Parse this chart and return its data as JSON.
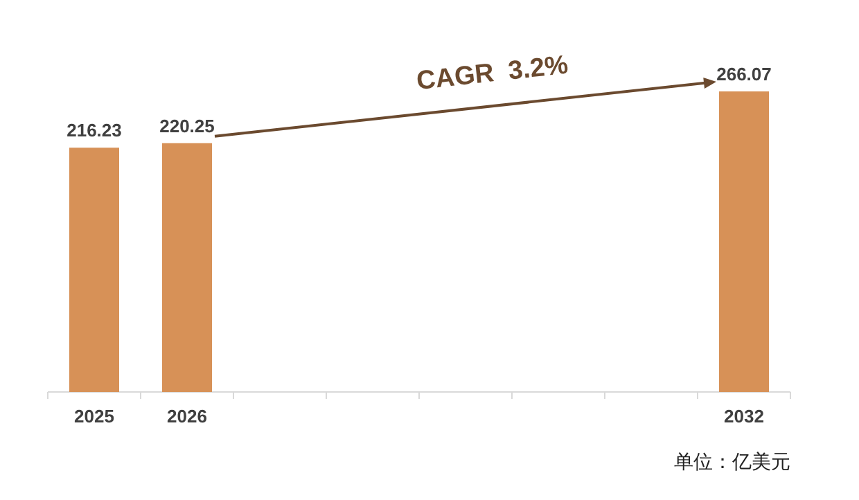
{
  "chart_data": {
    "type": "bar",
    "categories": [
      "2025",
      "2026",
      null,
      null,
      null,
      null,
      null,
      "2032"
    ],
    "values": [
      216.23,
      220.25,
      null,
      null,
      null,
      null,
      null,
      266.07
    ],
    "color": "#d79157",
    "tick_labels": "x",
    "data_labels": true,
    "annotations": [
      "CAGR  3.2%",
      "单位：亿美元"
    ]
  }
}
